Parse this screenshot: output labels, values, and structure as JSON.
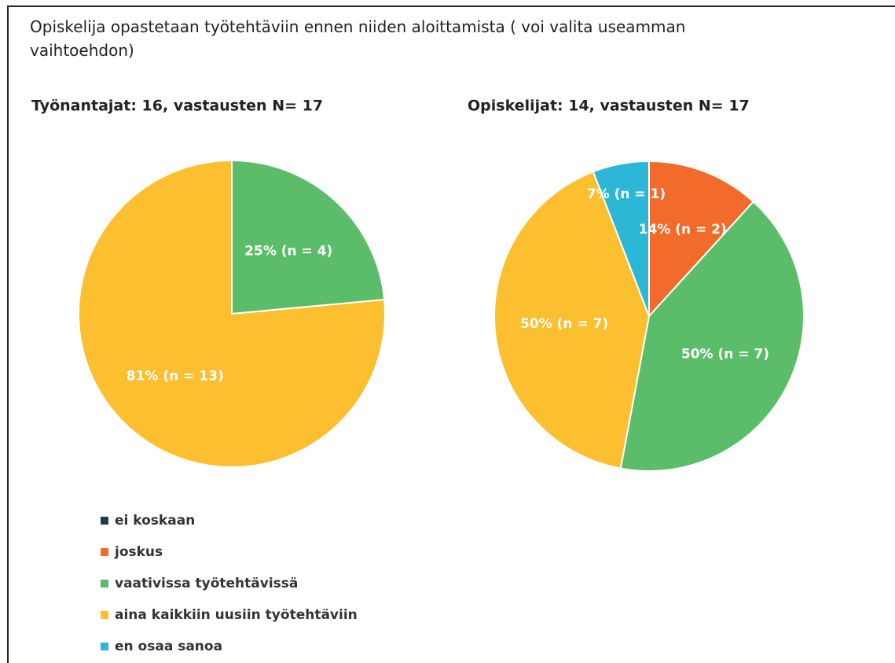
{
  "title": "Opiskelija opastetaan työtehtäviin ennen niiden aloittamista ( voi valita useamman vaihtoehdon)",
  "legend": {
    "categories": [
      "ei koskaan",
      "joskus",
      "vaativissa työtehtävissä",
      "aina kaikkiin uusiin työtehtäviin",
      "en osaa sanoa"
    ],
    "colors": [
      "#1f3b4d",
      "#f26b2a",
      "#5bbd6a",
      "#fbbf2f",
      "#2bb7d5"
    ]
  },
  "chart_data": [
    {
      "type": "pie",
      "title": "Työnantajat: 16, vastausten N= 17",
      "values": [
        0,
        0,
        4,
        13,
        0
      ],
      "value_labels": [
        null,
        null,
        "25% (n = 4)",
        "81% (n = 13)",
        null
      ]
    },
    {
      "type": "pie",
      "title": "Opiskelijat: 14, vastausten N= 17",
      "values": [
        0,
        2,
        7,
        7,
        1
      ],
      "value_labels": [
        null,
        "14% (n = 2)",
        "50% (n = 7)",
        "50% (n = 7)",
        "7% (n = 1)"
      ]
    }
  ]
}
